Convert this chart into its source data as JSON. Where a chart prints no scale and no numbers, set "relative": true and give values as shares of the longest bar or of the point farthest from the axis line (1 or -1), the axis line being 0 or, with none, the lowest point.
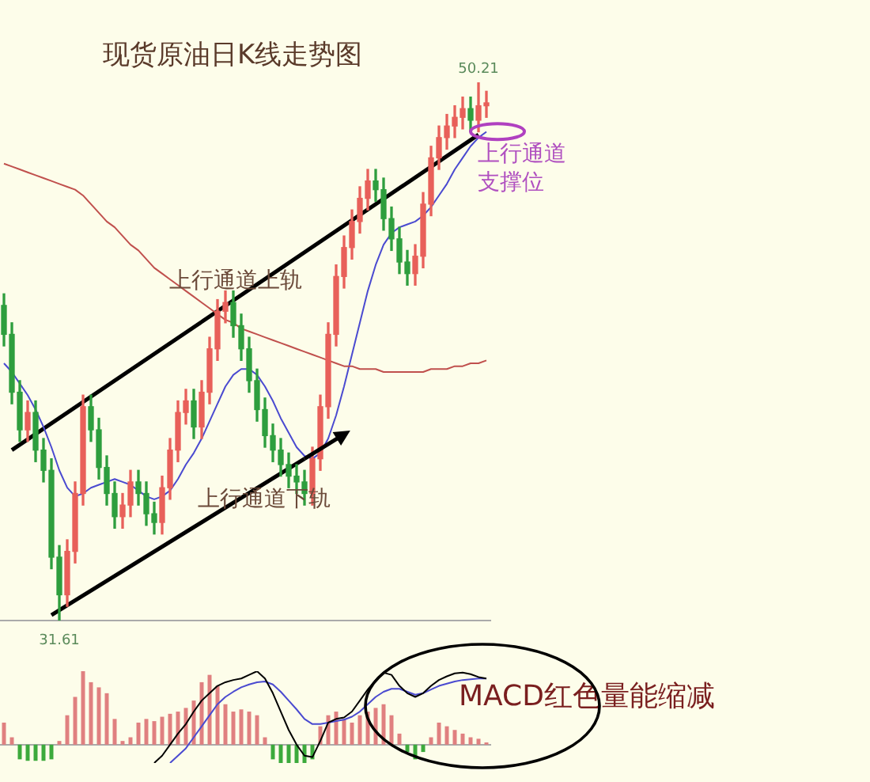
{
  "chart_data": [
    {
      "type": "candlestick",
      "title": "现货原油日K线走势图",
      "categories": [
        null,
        null,
        null,
        null,
        null,
        null,
        null,
        null,
        null,
        null,
        null,
        null,
        null,
        null,
        null,
        null,
        null,
        null,
        null,
        null,
        null,
        null,
        null,
        null,
        null,
        null,
        null,
        null,
        null,
        null,
        null,
        null,
        null,
        null,
        null,
        null,
        null,
        null,
        null,
        null,
        null,
        null,
        null,
        null,
        null,
        null,
        null,
        null,
        null,
        null,
        null,
        null,
        null,
        null,
        null,
        null,
        null,
        null,
        null,
        null,
        null,
        null
      ],
      "ohlc": [
        [
          42.5,
          42.9,
          41.1,
          41.5
        ],
        [
          41.5,
          41.9,
          39.1,
          39.5
        ],
        [
          39.5,
          39.9,
          37.8,
          38.2
        ],
        [
          38.2,
          39.2,
          37.8,
          38.8
        ],
        [
          38.8,
          39.2,
          37.1,
          37.5
        ],
        [
          37.5,
          37.9,
          36.4,
          36.8
        ],
        [
          36.8,
          37.2,
          33.4,
          33.8
        ],
        [
          33.8,
          34.2,
          31.61,
          32.5
        ],
        [
          32.5,
          34.4,
          32.1,
          34.0
        ],
        [
          34.0,
          36.4,
          33.6,
          36.0
        ],
        [
          36.0,
          39.4,
          35.6,
          39.0
        ],
        [
          39.0,
          39.4,
          37.8,
          38.2
        ],
        [
          38.2,
          38.6,
          36.5,
          36.9
        ],
        [
          36.9,
          37.3,
          35.6,
          36.0
        ],
        [
          36.0,
          36.4,
          34.8,
          35.2
        ],
        [
          35.2,
          36.0,
          34.8,
          35.6
        ],
        [
          35.6,
          36.8,
          35.2,
          36.4
        ],
        [
          36.4,
          36.8,
          35.6,
          36.0
        ],
        [
          36.0,
          36.4,
          34.9,
          35.3
        ],
        [
          35.3,
          35.7,
          34.6,
          35.0
        ],
        [
          35.0,
          36.6,
          34.6,
          36.2
        ],
        [
          36.2,
          37.9,
          35.8,
          37.5
        ],
        [
          37.5,
          39.2,
          37.1,
          38.8
        ],
        [
          38.8,
          39.6,
          38.4,
          39.2
        ],
        [
          39.2,
          39.6,
          37.9,
          38.3
        ],
        [
          38.3,
          39.9,
          37.9,
          39.5
        ],
        [
          39.5,
          41.4,
          39.1,
          41.0
        ],
        [
          41.0,
          42.7,
          40.6,
          42.3
        ],
        [
          42.3,
          43.0,
          41.9,
          42.6
        ],
        [
          42.6,
          43.0,
          41.4,
          41.8
        ],
        [
          41.8,
          42.2,
          40.6,
          41.0
        ],
        [
          41.0,
          41.4,
          39.5,
          39.9
        ],
        [
          39.9,
          40.3,
          38.5,
          38.9
        ],
        [
          38.9,
          39.3,
          37.6,
          38.0
        ],
        [
          38.0,
          38.4,
          37.1,
          37.5
        ],
        [
          37.5,
          37.9,
          36.6,
          37.0
        ],
        [
          37.0,
          37.4,
          36.2,
          36.6
        ],
        [
          36.6,
          37.0,
          36.0,
          36.4
        ],
        [
          36.4,
          36.8,
          35.6,
          36.0
        ],
        [
          36.0,
          37.6,
          35.6,
          37.2
        ],
        [
          37.2,
          39.4,
          36.8,
          39.0
        ],
        [
          39.0,
          41.9,
          38.6,
          41.5
        ],
        [
          41.5,
          43.9,
          41.1,
          43.5
        ],
        [
          43.5,
          44.9,
          43.1,
          44.5
        ],
        [
          44.5,
          45.8,
          44.1,
          45.4
        ],
        [
          45.4,
          46.6,
          45.0,
          46.2
        ],
        [
          46.2,
          47.2,
          45.8,
          46.8
        ],
        [
          46.8,
          47.2,
          46.1,
          46.5
        ],
        [
          46.5,
          46.9,
          45.1,
          45.5
        ],
        [
          45.5,
          45.9,
          44.4,
          44.8
        ],
        [
          44.8,
          45.2,
          43.6,
          44.0
        ],
        [
          44.0,
          44.4,
          43.2,
          43.6
        ],
        [
          43.6,
          44.6,
          43.2,
          44.2
        ],
        [
          44.2,
          46.4,
          43.8,
          46.0
        ],
        [
          46.0,
          48.0,
          45.6,
          47.6
        ],
        [
          47.6,
          48.7,
          47.2,
          48.3
        ],
        [
          48.3,
          49.1,
          47.9,
          48.7
        ],
        [
          48.7,
          49.4,
          48.3,
          49.0
        ],
        [
          49.0,
          49.7,
          48.6,
          49.3
        ],
        [
          49.3,
          49.7,
          48.5,
          48.9
        ],
        [
          48.9,
          50.21,
          48.5,
          49.4
        ],
        [
          49.4,
          49.9,
          49.0,
          49.5
        ]
      ],
      "series": [
        {
          "type": "line",
          "color": "#c0504d",
          "values": [
            47.4,
            47.3,
            47.2,
            47.1,
            47.0,
            46.9,
            46.8,
            46.7,
            46.6,
            46.5,
            46.3,
            46.0,
            45.7,
            45.4,
            45.2,
            44.9,
            44.6,
            44.4,
            44.1,
            43.8,
            43.6,
            43.4,
            43.2,
            43.0,
            42.8,
            42.6,
            42.4,
            42.2,
            42.0,
            41.9,
            41.7,
            41.6,
            41.5,
            41.4,
            41.3,
            41.2,
            41.1,
            41.0,
            40.9,
            40.8,
            40.7,
            40.6,
            40.5,
            40.4,
            40.4,
            40.3,
            40.3,
            40.3,
            40.2,
            40.2,
            40.2,
            40.2,
            40.2,
            40.2,
            40.3,
            40.3,
            40.3,
            40.4,
            40.4,
            40.5,
            40.5,
            40.6
          ]
        },
        {
          "type": "line",
          "color": "#4a4ad0",
          "values": [
            40.5,
            40.2,
            39.8,
            39.4,
            38.9,
            38.3,
            37.6,
            36.8,
            36.2,
            35.9,
            36.0,
            36.2,
            36.3,
            36.4,
            36.5,
            36.4,
            36.3,
            36.1,
            35.9,
            35.8,
            35.9,
            36.1,
            36.5,
            37.0,
            37.4,
            37.9,
            38.5,
            39.1,
            39.7,
            40.1,
            40.3,
            40.3,
            40.1,
            39.7,
            39.2,
            38.6,
            38.1,
            37.6,
            37.3,
            37.2,
            37.4,
            37.9,
            38.7,
            39.7,
            40.8,
            41.9,
            43.0,
            43.9,
            44.6,
            45.0,
            45.2,
            45.3,
            45.4,
            45.6,
            45.9,
            46.3,
            46.7,
            47.2,
            47.6,
            48.0,
            48.3,
            48.5
          ]
        },
        {
          "type": "line",
          "color": "#000000",
          "values": [
            null,
            37.5,
            null,
            null,
            null,
            null,
            null,
            null,
            null,
            null,
            null,
            null,
            null,
            null,
            null,
            null,
            null,
            null,
            null,
            null,
            null,
            null,
            null,
            null,
            null,
            null,
            null,
            null,
            null,
            null,
            null,
            null,
            null,
            null,
            null,
            null,
            null,
            null,
            null,
            null,
            null,
            null,
            null,
            null,
            null,
            null,
            null,
            null,
            null,
            null,
            null,
            null,
            null,
            null,
            null,
            null,
            null,
            null,
            null,
            null,
            48.4,
            null
          ]
        },
        {
          "type": "line",
          "color": "#000000",
          "values": [
            null,
            null,
            null,
            null,
            null,
            null,
            31.8,
            null,
            null,
            null,
            null,
            null,
            null,
            null,
            null,
            null,
            null,
            null,
            null,
            null,
            null,
            null,
            null,
            null,
            null,
            null,
            null,
            null,
            null,
            null,
            null,
            null,
            null,
            null,
            null,
            null,
            null,
            null,
            37.2,
            null,
            null,
            null,
            null,
            null,
            null,
            null,
            null,
            null,
            null,
            null,
            null,
            null,
            null,
            null,
            null,
            null,
            null,
            null,
            null,
            null,
            null,
            null
          ]
        }
      ],
      "annotations": [
        {
          "text": "50.21",
          "y": 50.21
        },
        {
          "text": "31.61",
          "y": 31.61
        },
        "上行通道上轨",
        "上行通道下轨",
        "上行通道",
        "支撑位"
      ],
      "legend": false,
      "marker": "none",
      "tick_labels": false
    },
    {
      "type": "bar",
      "relative": true,
      "categories": [
        null,
        null,
        null,
        null,
        null,
        null,
        null,
        null,
        null,
        null,
        null,
        null,
        null,
        null,
        null,
        null,
        null,
        null,
        null,
        null,
        null,
        null,
        null,
        null,
        null,
        null,
        null,
        null,
        null,
        null,
        null,
        null,
        null,
        null,
        null,
        null,
        null,
        null,
        null,
        null,
        null,
        null,
        null,
        null,
        null,
        null,
        null,
        null,
        null,
        null,
        null,
        null,
        null,
        null,
        null,
        null,
        null,
        null,
        null,
        null,
        null,
        null
      ],
      "series": [
        {
          "type": "bar",
          "values": [
            0.3,
            0.1,
            -0.2,
            -0.22,
            -0.22,
            -0.22,
            -0.2,
            0.05,
            0.4,
            0.65,
            1,
            0.85,
            0.78,
            0.7,
            0.35,
            0.05,
            0.1,
            0.3,
            0.35,
            0.32,
            0.38,
            0.42,
            0.45,
            0.5,
            0.6,
            0.85,
            0.95,
            0.8,
            0.55,
            0.45,
            0.48,
            0.45,
            0.4,
            0.1,
            -0.2,
            -0.25,
            -0.25,
            -0.25,
            -0.25,
            -0.2,
            0.25,
            0.4,
            0.45,
            0.35,
            0.3,
            0.4,
            0.45,
            0.5,
            0.55,
            0.4,
            0.15,
            -0.1,
            -0.2,
            -0.1,
            0.1,
            0.3,
            0.25,
            0.2,
            0.15,
            0.1,
            0.08,
            0.03
          ],
          "colors": [
            "#e08080",
            "#e08080",
            "#3caa3c",
            "#3caa3c",
            "#3caa3c",
            "#3caa3c",
            "#3caa3c",
            "#e08080",
            "#e08080",
            "#e08080",
            "#e08080",
            "#e08080",
            "#e08080",
            "#e08080",
            "#e08080",
            "#e08080",
            "#e08080",
            "#e08080",
            "#e08080",
            "#e08080",
            "#e08080",
            "#e08080",
            "#e08080",
            "#e08080",
            "#e08080",
            "#e08080",
            "#e08080",
            "#e08080",
            "#e08080",
            "#e08080",
            "#e08080",
            "#e08080",
            "#e08080",
            "#e08080",
            "#3caa3c",
            "#3caa3c",
            "#3caa3c",
            "#3caa3c",
            "#3caa3c",
            "#3caa3c",
            "#e08080",
            "#e08080",
            "#e08080",
            "#e08080",
            "#e08080",
            "#e08080",
            "#e08080",
            "#e08080",
            "#e08080",
            "#e08080",
            "#e08080",
            "#3caa3c",
            "#3caa3c",
            "#3caa3c",
            "#e08080",
            "#e08080",
            "#e08080",
            "#e08080",
            "#e08080",
            "#e08080",
            "#e08080",
            "#e08080"
          ]
        },
        {
          "type": "line",
          "color": "#000000",
          "values": [
            null,
            null,
            null,
            null,
            null,
            null,
            null,
            null,
            null,
            null,
            null,
            null,
            null,
            null,
            null,
            null,
            null,
            null,
            null,
            -0.25,
            -0.15,
            0.0,
            0.15,
            0.28,
            0.45,
            0.6,
            0.7,
            0.8,
            0.85,
            0.88,
            0.9,
            0.95,
            1.0,
            0.9,
            0.7,
            0.45,
            0.2,
            0.0,
            -0.15,
            -0.17,
            0.05,
            0.3,
            0.35,
            0.37,
            0.45,
            0.6,
            0.75,
            0.88,
            0.98,
            0.95,
            0.8,
            0.7,
            0.65,
            0.7,
            0.8,
            0.88,
            0.93,
            0.97,
            0.98,
            0.96,
            0.92,
            0.9
          ]
        },
        {
          "type": "line",
          "color": "#4a4ad0",
          "values": [
            null,
            null,
            null,
            null,
            null,
            null,
            null,
            null,
            null,
            null,
            null,
            null,
            null,
            null,
            null,
            null,
            null,
            null,
            null,
            null,
            null,
            -0.25,
            -0.15,
            -0.05,
            0.1,
            0.25,
            0.4,
            0.55,
            0.65,
            0.72,
            0.78,
            0.82,
            0.85,
            0.86,
            0.82,
            0.72,
            0.6,
            0.48,
            0.35,
            0.28,
            0.28,
            0.3,
            0.32,
            0.34,
            0.38,
            0.45,
            0.55,
            0.65,
            0.72,
            0.76,
            0.76,
            0.72,
            0.68,
            0.7,
            0.75,
            0.8,
            0.83,
            0.86,
            0.88,
            0.89,
            0.9,
            0.9
          ]
        }
      ],
      "annotations": [
        "MACD红色量能缩减"
      ],
      "legend": false,
      "marker": "none",
      "tick_labels": false
    }
  ]
}
